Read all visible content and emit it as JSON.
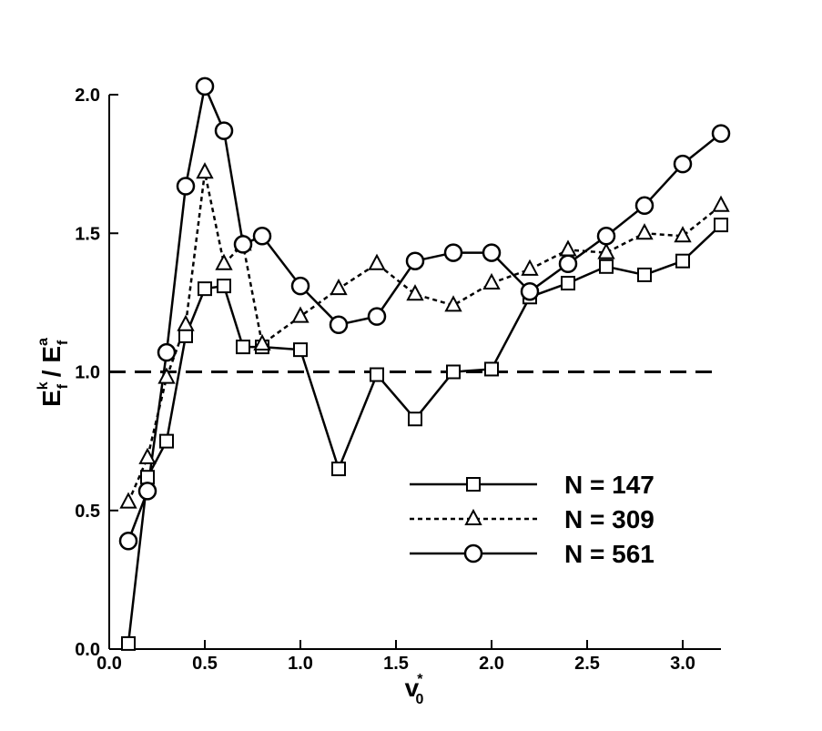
{
  "chart_data": {
    "type": "line",
    "xlabel": {
      "main": "v",
      "sup": "*",
      "sub": "0"
    },
    "ylabel": {
      "main": [
        "E",
        " / E"
      ],
      "sup": [
        "k",
        "a"
      ],
      "sub": [
        "f",
        "f"
      ]
    },
    "x": [
      0.1,
      0.2,
      0.3,
      0.4,
      0.5,
      0.6,
      0.7,
      0.8,
      1.0,
      1.2,
      1.4,
      1.6,
      1.8,
      2.0,
      2.2,
      2.4,
      2.6,
      2.8,
      3.0,
      3.2
    ],
    "xlim": [
      0,
      3.2
    ],
    "ylim": [
      0,
      2.0
    ],
    "xticks": [
      {
        "value": 0,
        "label": "0.0"
      },
      0.5,
      {
        "value": 1,
        "label": "1.0"
      },
      1.5,
      {
        "value": 2,
        "label": "2.0"
      },
      2.5,
      {
        "value": 3,
        "label": "3.0"
      }
    ],
    "yticks": [
      {
        "value": 0,
        "label": "0.0"
      },
      0.5,
      {
        "value": 1,
        "label": "1.0"
      },
      1.5,
      {
        "value": 2,
        "label": "2.0"
      }
    ],
    "reference_line": {
      "y": 1.0,
      "style": "dashed",
      "color": "#000000"
    },
    "legend": "lower right",
    "series": [
      {
        "name": "N = 147",
        "color": "#000000",
        "line_style": "solid",
        "marker": "square",
        "values": [
          0.02,
          0.62,
          0.75,
          1.13,
          1.3,
          1.31,
          1.09,
          1.09,
          1.08,
          0.65,
          0.99,
          0.83,
          1.0,
          1.01,
          1.27,
          1.32,
          1.38,
          1.35,
          1.4,
          1.53
        ]
      },
      {
        "name": "N = 309",
        "color": "#000000",
        "line_style": "dotted",
        "marker": "triangle",
        "values": [
          0.53,
          0.69,
          0.98,
          1.17,
          1.72,
          1.39,
          1.46,
          1.1,
          1.2,
          1.3,
          1.39,
          1.28,
          1.24,
          1.32,
          1.37,
          1.44,
          1.43,
          1.5,
          1.49,
          1.6
        ]
      },
      {
        "name": "N = 561",
        "color": "#000000",
        "line_style": "solid",
        "marker": "circle",
        "values": [
          0.39,
          0.57,
          1.07,
          1.67,
          2.03,
          1.87,
          1.46,
          1.49,
          1.31,
          1.17,
          1.2,
          1.4,
          1.43,
          1.43,
          1.29,
          1.39,
          1.49,
          1.6,
          1.75,
          1.86
        ]
      }
    ]
  }
}
